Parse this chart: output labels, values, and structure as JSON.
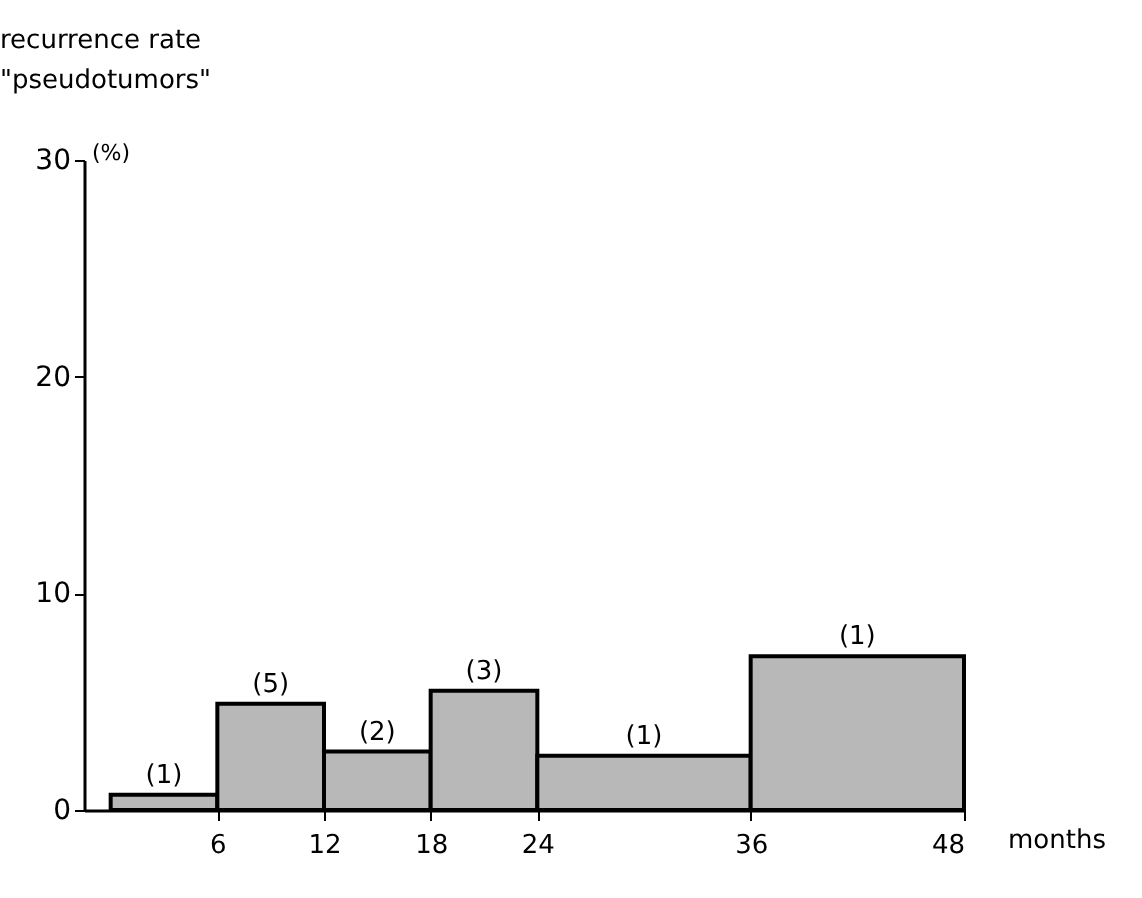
{
  "chart_data": {
    "type": "histogram",
    "ylabel": "recurrence rate\n\"pseudotumors\"",
    "xlabel": "months",
    "annotations": [
      "(%)",
      {
        "text": "(1)",
        "x": 3,
        "y": 0.7
      },
      {
        "text": "(5)",
        "x": 9,
        "y": 4.9
      },
      {
        "text": "(2)",
        "x": 15,
        "y": 2.7
      },
      {
        "text": "(3)",
        "x": 21,
        "y": 5.5
      },
      {
        "text": "(1)",
        "x": 30,
        "y": 2.5
      },
      {
        "text": "(1)",
        "x": 42,
        "y": 7.1
      }
    ],
    "bins": [
      0,
      6,
      12,
      18,
      24,
      36,
      48
    ],
    "values": [
      0.7,
      4.9,
      2.7,
      5.5,
      2.5,
      7.1
    ],
    "color": "#b8b8b8",
    "xlim": [
      -1.5,
      48
    ],
    "xticks": [
      6,
      12,
      18,
      24,
      36,
      48
    ],
    "ylim": [
      0,
      30
    ],
    "yticks": [
      0,
      10,
      20,
      30
    ],
    "grid": false
  }
}
